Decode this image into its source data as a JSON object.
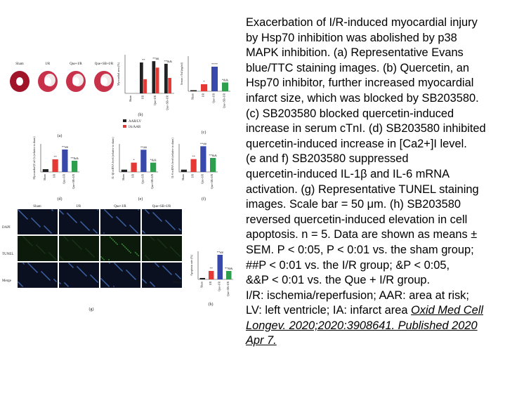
{
  "figure": {
    "panel_a": {
      "label": "(a)",
      "columns": [
        "Sham",
        "I/R",
        "Que+I/R",
        "Que+SB+I/R"
      ]
    },
    "charts": [
      {
        "label": "(b)",
        "ylabel": "Myocardial area (%)",
        "categories": [
          "Sham",
          "I/R",
          "Que+I/R",
          "Que+SB+I/R"
        ],
        "ylim": [
          0,
          60
        ],
        "series": [
          {
            "name": "AAR/LV",
            "color": "#222222",
            "values": [
              0,
              48,
              50,
              46
            ]
          },
          {
            "name": "IA/AAR",
            "color": "#e53935",
            "values": [
              0,
              22,
              40,
              24
            ]
          }
        ],
        "annotations": [
          null,
          "**",
          "**##",
          "**&&"
        ]
      },
      {
        "label": "(c)",
        "ylabel": "Serum cTnI (ng/ml)",
        "categories": [
          "Sham",
          "I/R",
          "Que+I/R",
          "Que+SB+I/R"
        ],
        "ylim": [
          0,
          10
        ],
        "colors": [
          "#222222",
          "#e53935",
          "#3949ab",
          "#2e9e4f"
        ],
        "values": [
          0.3,
          2,
          7,
          2.5
        ],
        "annotations": [
          null,
          "*",
          "****",
          "*&&"
        ]
      },
      {
        "label": "(d)",
        "ylabel": "Myocardial [Ca2+]i (relative to sham)",
        "categories": [
          "Sham",
          "I/R",
          "Que+I/R",
          "Que+SB+I/R"
        ],
        "ylim": [
          0,
          10
        ],
        "colors": [
          "#222222",
          "#e53935",
          "#3949ab",
          "#2e9e4f"
        ],
        "values": [
          1,
          4.5,
          8,
          4
        ],
        "annotations": [
          null,
          "**",
          "**##",
          "**&&"
        ]
      },
      {
        "label": "(e)",
        "ylabel": "IL-1β mRNA level (relative to sham)",
        "categories": [
          "Sham",
          "I/R",
          "Que+I/R",
          "Que+SB+I/R"
        ],
        "ylim": [
          0,
          12
        ],
        "colors": [
          "#222222",
          "#e53935",
          "#3949ab",
          "#2e9e4f"
        ],
        "values": [
          1,
          4,
          9.5,
          4
        ],
        "annotations": [
          null,
          "*",
          "**##",
          "*&&"
        ]
      },
      {
        "label": "(f)",
        "ylabel": "IL-6 mRNA level (relative to sham)",
        "categories": [
          "Sham",
          "I/R",
          "Que+I/R",
          "Que+SB+I/R"
        ],
        "ylim": [
          0,
          12
        ],
        "colors": [
          "#222222",
          "#e53935",
          "#3949ab",
          "#2e9e4f"
        ],
        "values": [
          1,
          5.5,
          11,
          6
        ],
        "annotations": [
          null,
          "**",
          "**##",
          "**&&"
        ]
      },
      {
        "label": "(h)",
        "ylabel": "Apoptosis rate (%)",
        "categories": [
          "Sham",
          "I/R",
          "Que+I/R",
          "Que+SB+I/R"
        ],
        "ylim": [
          0,
          40
        ],
        "colors": [
          "#222222",
          "#e53935",
          "#3949ab",
          "#2e9e4f"
        ],
        "values": [
          2,
          12,
          35,
          12
        ],
        "annotations": [
          null,
          "**",
          "**##",
          "**&&"
        ]
      }
    ],
    "panel_g": {
      "label": "(g)",
      "columns": [
        "Sham",
        "I/R",
        "Que+I/R",
        "Que+SB+I/R"
      ],
      "rows": [
        "DAPI",
        "TUNEL",
        "Merge"
      ],
      "scale_bar": "50 μm"
    }
  },
  "caption": {
    "lines": [
      "Exacerbation of I/R-induced myocardial injury",
      "by Hsp70 inhibition was abolished by p38",
      "MAPK inhibition.  (a) Representative Evans",
      "blue/TTC staining images. (b) Quercetin, an",
      "Hsp70 inhibitor, further increased myocardial",
      "infarct size, which was blocked by SB203580.",
      "(c) SB203580 blocked quercetin-induced",
      "increase in serum cTnI. (d) SB203580 inhibited",
      "quercetin-induced increase in [Ca2+]I level.",
      "(e and f) SB203580 suppressed",
      "quercetin-induced IL-1β and IL-6 mRNA",
      "activation. (g) Representative TUNEL staining",
      "images. Scale bar = 50 μm. (h) SB203580",
      "reversed quercetin-induced elevation in cell",
      "apoptosis. n = 5. Data are shown as means ±",
      "SEM.  P < 0:05,   P < 0:01 vs. the sham group;",
      "##P < 0:01 vs. the I/R group; &P < 0:05,",
      "&&P < 0:01 vs. the Que + I/R group.",
      "I/R: ischemia/reperfusion; AAR: area at risk;"
    ],
    "last_line": "LV: left ventricle; IA: infarct area",
    "citation": [
      "Oxid Med Cell",
      "Longev. 2020;2020:3908641. Published 2020",
      "Apr 7."
    ]
  }
}
